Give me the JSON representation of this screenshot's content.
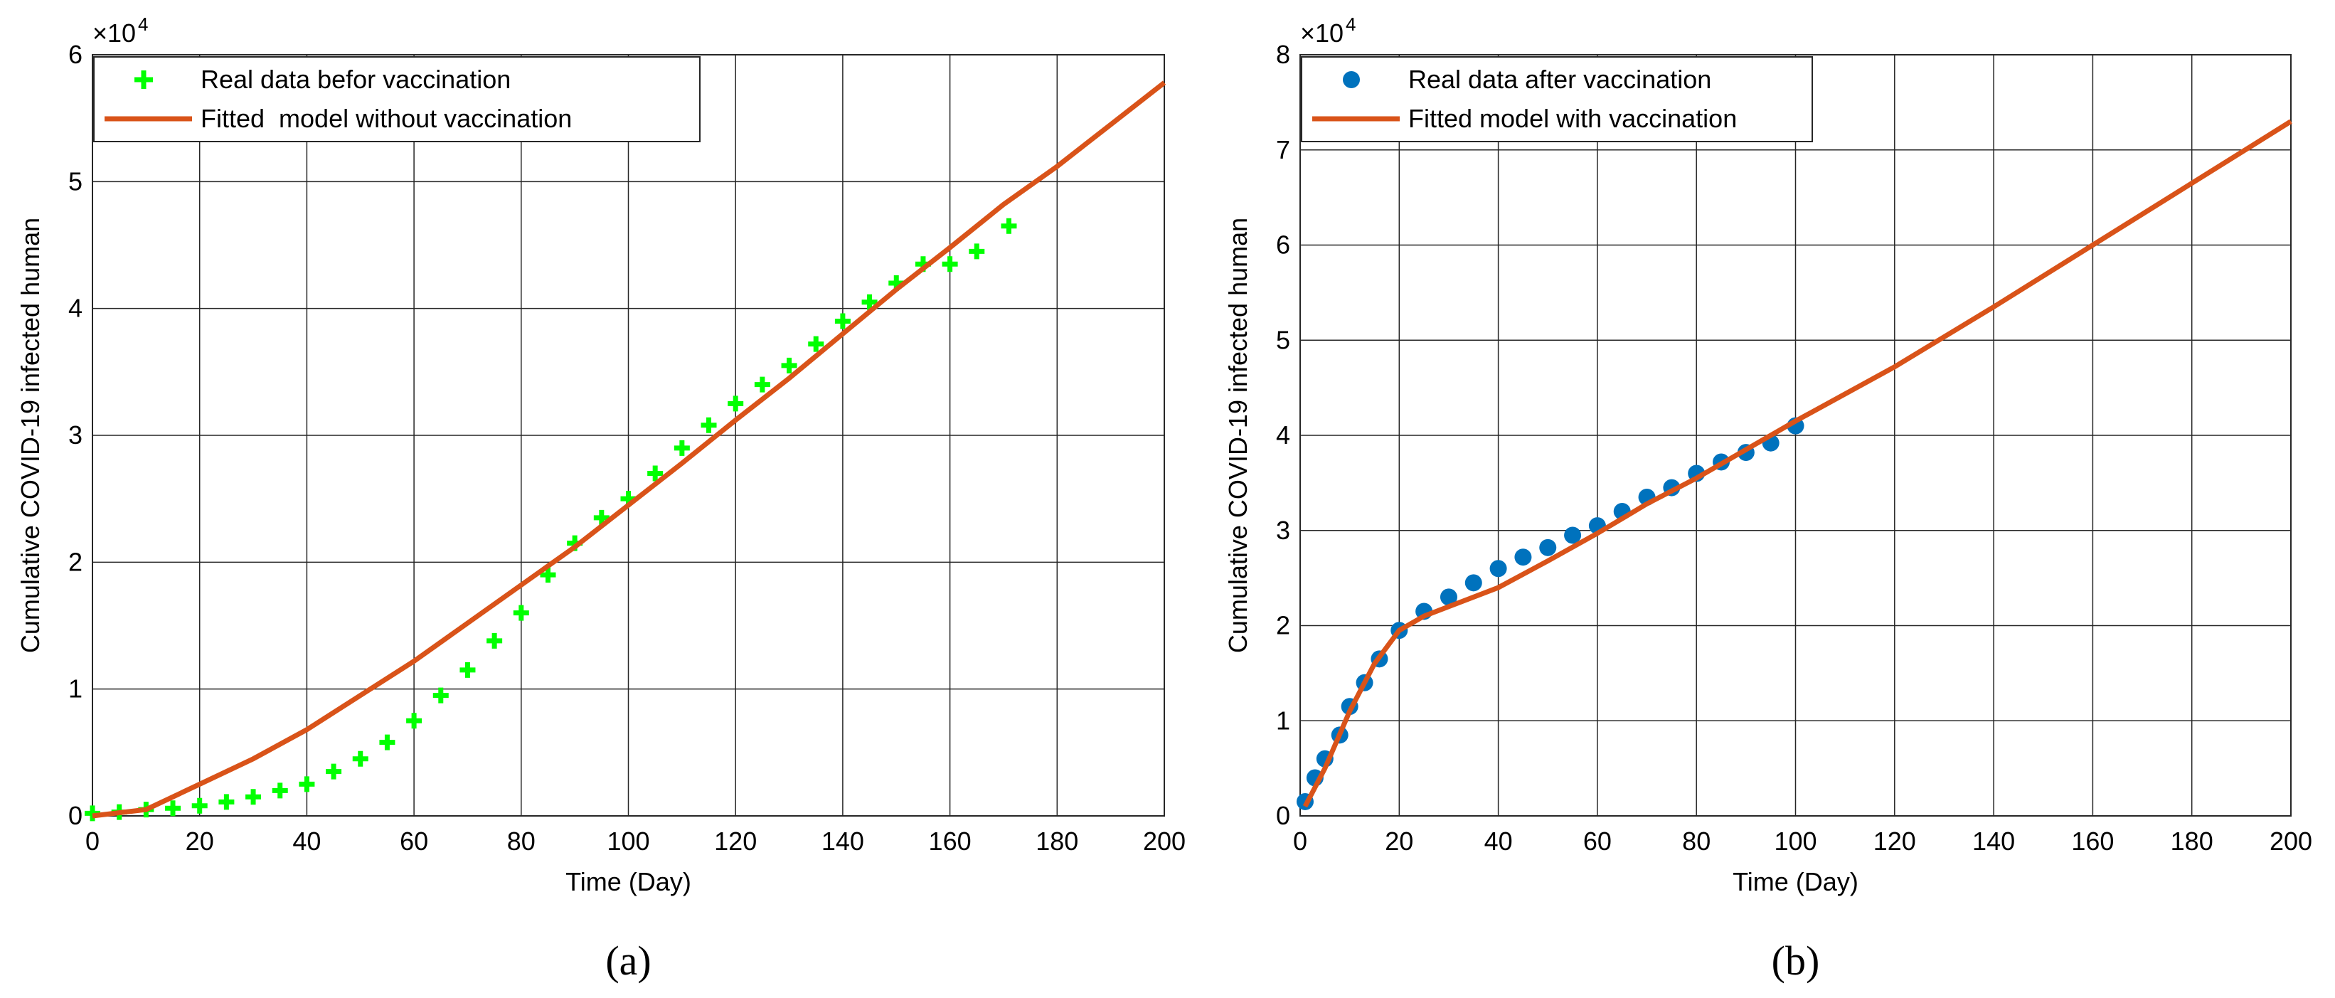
{
  "chart_data": [
    {
      "type": "line",
      "caption": "(a)",
      "x_label": "Time (Day)",
      "y_label": "Cumulative COVID-19 infected human",
      "y_multiplier": {
        "base": "×10",
        "exponent": "4"
      },
      "xlim": [
        0,
        200
      ],
      "xticks": [
        0,
        20,
        40,
        60,
        80,
        100,
        120,
        140,
        160,
        180,
        200
      ],
      "ylim": [
        0,
        6
      ],
      "yticks": [
        0,
        1,
        2,
        3,
        4,
        5,
        6
      ],
      "grid": true,
      "legend": "upper left",
      "series": [
        {
          "name": "Real data befor vaccination",
          "color": "#00ff00",
          "marker": "plus",
          "x": [
            0,
            5,
            10,
            15,
            20,
            25,
            30,
            35,
            40,
            45,
            50,
            55,
            60,
            65,
            70,
            75,
            80,
            85,
            90,
            95,
            100,
            105,
            110,
            115,
            120,
            125,
            130,
            135,
            140,
            145,
            150,
            155,
            160,
            165,
            171
          ],
          "values": [
            0.02,
            0.03,
            0.05,
            0.06,
            0.08,
            0.11,
            0.15,
            0.2,
            0.25,
            0.35,
            0.45,
            0.58,
            0.75,
            0.95,
            1.15,
            1.38,
            1.6,
            1.9,
            2.15,
            2.35,
            2.5,
            2.7,
            2.9,
            3.08,
            3.25,
            3.4,
            3.55,
            3.72,
            3.9,
            4.05,
            4.2,
            4.35,
            4.35,
            4.45,
            4.65
          ]
        },
        {
          "name": "Fitted  model without vaccination",
          "color": "#d95319",
          "marker": null,
          "x": [
            0,
            10,
            20,
            30,
            40,
            50,
            60,
            70,
            80,
            90,
            100,
            110,
            120,
            130,
            140,
            150,
            160,
            170,
            180,
            190,
            200
          ],
          "values": [
            0,
            0.05,
            0.25,
            0.45,
            0.68,
            0.95,
            1.22,
            1.52,
            1.82,
            2.12,
            2.45,
            2.78,
            3.12,
            3.45,
            3.8,
            4.15,
            4.48,
            4.82,
            5.12,
            5.45,
            5.78
          ]
        }
      ]
    },
    {
      "type": "line",
      "caption": "(b)",
      "x_label": "Time (Day)",
      "y_label": "Cumulative COVID-19 infected human",
      "y_multiplier": {
        "base": "×10",
        "exponent": "4"
      },
      "xlim": [
        0,
        200
      ],
      "xticks": [
        0,
        20,
        40,
        60,
        80,
        100,
        120,
        140,
        160,
        180,
        200
      ],
      "ylim": [
        0,
        8
      ],
      "yticks": [
        0,
        1,
        2,
        3,
        4,
        5,
        6,
        7,
        8
      ],
      "grid": true,
      "legend": "upper left",
      "series": [
        {
          "name": "Real data after vaccination",
          "color": "#0072bd",
          "marker": "circle",
          "x": [
            1,
            3,
            5,
            8,
            10,
            13,
            16,
            20,
            25,
            30,
            35,
            40,
            45,
            50,
            55,
            60,
            65,
            70,
            75,
            80,
            85,
            90,
            95,
            100
          ],
          "values": [
            0.15,
            0.4,
            0.6,
            0.85,
            1.15,
            1.4,
            1.65,
            1.95,
            2.15,
            2.3,
            2.45,
            2.6,
            2.72,
            2.82,
            2.95,
            3.05,
            3.2,
            3.35,
            3.45,
            3.6,
            3.72,
            3.82,
            3.92,
            4.1
          ]
        },
        {
          "name": "Fitted model with vaccination",
          "color": "#d95319",
          "marker": null,
          "x": [
            1,
            5,
            10,
            15,
            20,
            25,
            30,
            40,
            50,
            60,
            70,
            80,
            90,
            100,
            120,
            140,
            160,
            180,
            200
          ],
          "values": [
            0.1,
            0.5,
            1.1,
            1.6,
            1.95,
            2.1,
            2.2,
            2.4,
            2.68,
            2.97,
            3.28,
            3.55,
            3.85,
            4.15,
            4.72,
            5.35,
            6.0,
            6.65,
            7.3
          ]
        }
      ]
    }
  ]
}
